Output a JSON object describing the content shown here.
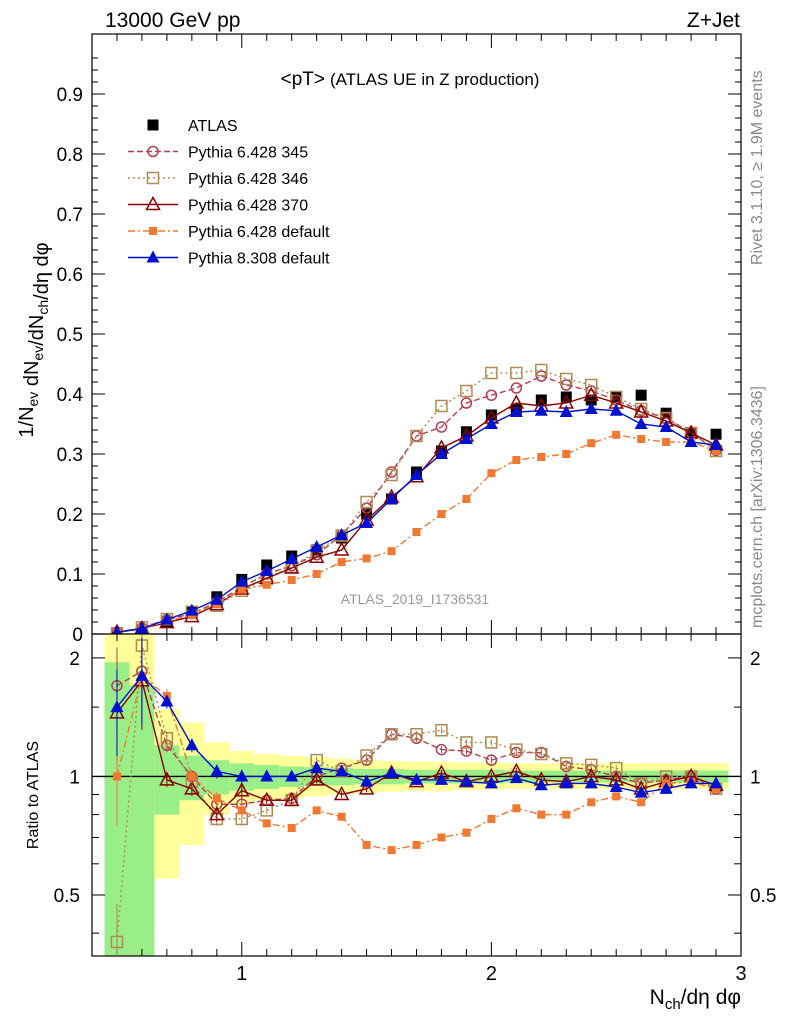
{
  "header": {
    "left": "13000 GeV pp",
    "right": "Z+Jet"
  },
  "side_labels": {
    "rivet": "Rivet 3.1.10, ≥ 1.9M events",
    "mcplots": "mcplots.cern.ch [arXiv:1306.3436]"
  },
  "chart_data": [
    {
      "type": "scatter",
      "title_main": "<pT>",
      "title_sub": "(ATLAS UE in Z production)",
      "watermark": "ATLAS_2019_I1736531",
      "ylabel": "1/N_ev dN_ev/dN_ch/dη dφ",
      "xlim": [
        0.4,
        3.0
      ],
      "ylim": [
        0,
        1.0
      ],
      "yticks": [
        0,
        0.1,
        0.2,
        0.3,
        0.4,
        0.5,
        0.6,
        0.7,
        0.8,
        0.9
      ],
      "ytick_labels": [
        "0",
        "0.1",
        "0.2",
        "0.3",
        "0.4",
        "0.5",
        "0.6",
        "0.7",
        "0.8",
        "0.9"
      ],
      "x": [
        0.5,
        0.6,
        0.7,
        0.8,
        0.9,
        1.0,
        1.1,
        1.2,
        1.3,
        1.4,
        1.5,
        1.6,
        1.7,
        1.8,
        1.9,
        2.0,
        2.1,
        2.2,
        2.3,
        2.4,
        2.5,
        2.6,
        2.7,
        2.8,
        2.9
      ],
      "series": [
        {
          "name": "ATLAS",
          "color": "#000000",
          "marker": "square-filled",
          "dash": "none",
          "values": [
            0.002,
            0.005,
            0.02,
            0.038,
            0.062,
            0.091,
            0.115,
            0.13,
            0.14,
            0.16,
            0.2,
            0.225,
            0.27,
            0.305,
            0.337,
            0.365,
            0.375,
            0.39,
            0.395,
            0.39,
            0.395,
            0.398,
            0.368,
            0.335,
            0.333
          ]
        },
        {
          "name": "Pythia 6.428 345",
          "color": "#b04050",
          "marker": "circle-open",
          "dash": "6,3",
          "values": [
            0.003,
            0.01,
            0.024,
            0.034,
            0.053,
            0.078,
            0.1,
            0.114,
            0.132,
            0.165,
            0.21,
            0.27,
            0.33,
            0.345,
            0.385,
            0.398,
            0.41,
            0.43,
            0.415,
            0.405,
            0.39,
            0.372,
            0.36,
            0.336,
            0.306
          ]
        },
        {
          "name": "Pythia 6.428 346",
          "color": "#b08a50",
          "marker": "square-open",
          "dash": "2,3",
          "values": [
            0.001,
            0.011,
            0.025,
            0.037,
            0.047,
            0.072,
            0.092,
            0.112,
            0.138,
            0.164,
            0.22,
            0.265,
            0.33,
            0.38,
            0.405,
            0.435,
            0.435,
            0.44,
            0.425,
            0.415,
            0.395,
            0.375,
            0.36,
            0.335,
            0.305
          ]
        },
        {
          "name": "Pythia 6.428 370",
          "color": "#8b0000",
          "marker": "triangle-open",
          "dash": "none",
          "values": [
            0.003,
            0.009,
            0.019,
            0.029,
            0.049,
            0.075,
            0.093,
            0.11,
            0.128,
            0.14,
            0.19,
            0.228,
            0.262,
            0.31,
            0.33,
            0.36,
            0.385,
            0.38,
            0.385,
            0.398,
            0.385,
            0.37,
            0.355,
            0.335,
            0.315
          ]
        },
        {
          "name": "Pythia 6.428 default",
          "color": "#f07830",
          "marker": "square-filled-small",
          "dash": "7,3,2,3",
          "values": [
            0.002,
            0.009,
            0.021,
            0.032,
            0.05,
            0.074,
            0.082,
            0.09,
            0.1,
            0.12,
            0.126,
            0.138,
            0.17,
            0.2,
            0.225,
            0.268,
            0.29,
            0.295,
            0.3,
            0.318,
            0.332,
            0.325,
            0.32,
            0.32,
            0.305
          ]
        },
        {
          "name": "Pythia 8.308 default",
          "color": "#0010d0",
          "marker": "triangle-filled",
          "dash": "none",
          "values": [
            0.003,
            0.009,
            0.024,
            0.039,
            0.057,
            0.087,
            0.105,
            0.125,
            0.145,
            0.165,
            0.185,
            0.225,
            0.265,
            0.3,
            0.325,
            0.35,
            0.37,
            0.372,
            0.37,
            0.375,
            0.372,
            0.35,
            0.345,
            0.32,
            0.315
          ]
        }
      ]
    },
    {
      "type": "scatter",
      "ylabel": "Ratio to ATLAS",
      "xlabel": "N_ch/dη dφ",
      "xlim": [
        0.4,
        3.0
      ],
      "ylim": [
        0.35,
        2.3
      ],
      "yticks": [
        0.5,
        1,
        2
      ],
      "ytick_labels": [
        "0.5",
        "1",
        "2"
      ],
      "xticks": [
        1,
        2,
        3
      ],
      "xtick_labels": [
        "1",
        "2",
        "3"
      ],
      "x": [
        0.5,
        0.6,
        0.7,
        0.8,
        0.9,
        1.0,
        1.1,
        1.2,
        1.3,
        1.4,
        1.5,
        1.6,
        1.7,
        1.8,
        1.9,
        2.0,
        2.1,
        2.2,
        2.3,
        2.4,
        2.5,
        2.6,
        2.7,
        2.8,
        2.9
      ],
      "band_inner": [
        0.95,
        0.7,
        0.2,
        0.13,
        0.1,
        0.08,
        0.07,
        0.06,
        0.055,
        0.05,
        0.045,
        0.045,
        0.04,
        0.04,
        0.04,
        0.04,
        0.035,
        0.035,
        0.035,
        0.035,
        0.035,
        0.035,
        0.035,
        0.035,
        0.035
      ],
      "band_outer_lo": [
        0.65,
        0.6,
        0.45,
        0.33,
        0.2,
        0.15,
        0.13,
        0.12,
        0.11,
        0.1,
        0.09,
        0.085,
        0.08,
        0.08,
        0.075,
        0.075,
        0.07,
        0.07,
        0.07,
        0.07,
        0.07,
        0.07,
        0.07,
        0.07,
        0.07
      ],
      "band_outer_hi": [
        1.5,
        1.3,
        0.48,
        0.37,
        0.22,
        0.16,
        0.14,
        0.13,
        0.12,
        0.11,
        0.1,
        0.095,
        0.09,
        0.09,
        0.085,
        0.085,
        0.08,
        0.08,
        0.08,
        0.08,
        0.08,
        0.08,
        0.08,
        0.08,
        0.08
      ],
      "series": [
        {
          "name": "Pythia 6.428 345",
          "color": "#b04050",
          "marker": "circle-open",
          "dash": "6,3",
          "values": [
            1.7,
            1.85,
            1.2,
            1.0,
            0.85,
            0.85,
            0.87,
            0.88,
            1.0,
            1.05,
            1.1,
            1.28,
            1.25,
            1.17,
            1.16,
            1.1,
            1.15,
            1.15,
            1.06,
            1.04,
            1.0,
            0.96,
            0.98,
            1.0,
            0.93
          ]
        },
        {
          "name": "Pythia 6.428 346",
          "color": "#b08a50",
          "marker": "square-open",
          "dash": "2,3",
          "values": [
            0.38,
            2.15,
            1.25,
            0.97,
            0.78,
            0.78,
            0.82,
            0.87,
            1.1,
            1.03,
            1.13,
            1.28,
            1.28,
            1.31,
            1.22,
            1.22,
            1.17,
            1.14,
            1.08,
            1.07,
            1.05,
            0.96,
            1.0,
            1.0,
            0.93
          ]
        },
        {
          "name": "Pythia 6.428 370",
          "color": "#8b0000",
          "marker": "triangle-open",
          "dash": "none",
          "values": [
            1.45,
            1.75,
            0.98,
            0.93,
            0.8,
            0.92,
            0.87,
            0.87,
            0.98,
            0.9,
            0.93,
            1.02,
            0.97,
            1.02,
            0.97,
            1.0,
            1.03,
            0.98,
            0.97,
            1.0,
            0.98,
            0.93,
            0.97,
            1.0,
            0.95
          ]
        },
        {
          "name": "Pythia 6.428 default",
          "color": "#f07830",
          "marker": "square-filled-small",
          "dash": "7,3,2,3",
          "values": [
            1.0,
            1.8,
            1.6,
            1.0,
            0.88,
            0.82,
            0.76,
            0.74,
            0.82,
            0.79,
            0.67,
            0.65,
            0.67,
            0.7,
            0.72,
            0.78,
            0.83,
            0.8,
            0.8,
            0.86,
            0.89,
            0.86,
            0.96,
            0.97,
            0.93
          ]
        },
        {
          "name": "Pythia 8.308 default",
          "color": "#0010d0",
          "marker": "triangle-filled",
          "dash": "none",
          "values": [
            1.5,
            1.8,
            1.55,
            1.2,
            1.03,
            1.0,
            1.0,
            1.0,
            1.05,
            1.03,
            0.97,
            1.02,
            0.98,
            0.98,
            0.97,
            0.96,
            0.99,
            0.95,
            0.96,
            0.96,
            0.94,
            0.91,
            0.93,
            0.96,
            0.96
          ]
        }
      ]
    }
  ]
}
